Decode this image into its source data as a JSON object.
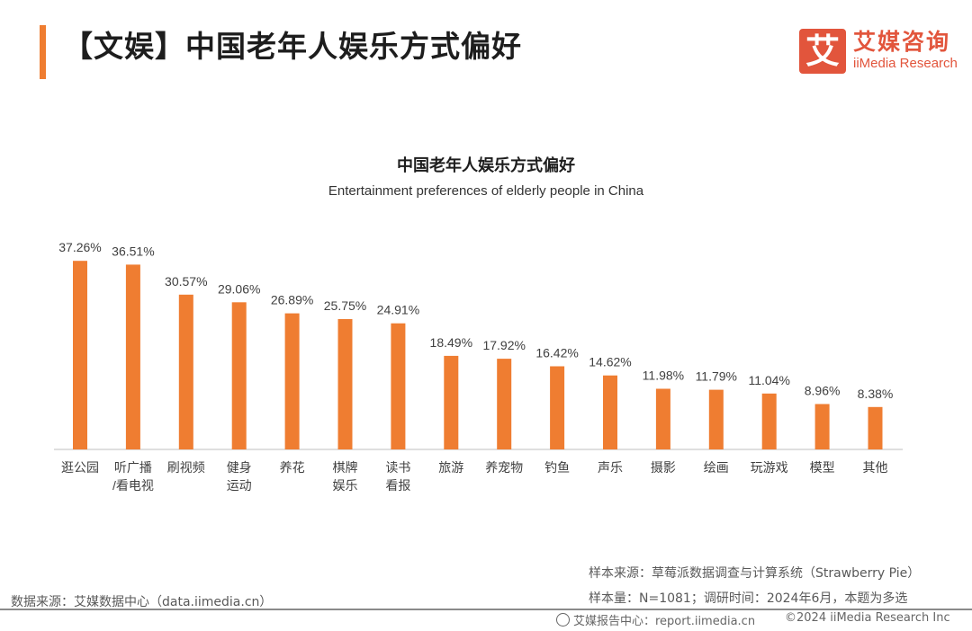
{
  "header": {
    "title": "【文娱】中国老年人娱乐方式偏好",
    "logo_char": "艾",
    "logo_cn": "艾媒咨询",
    "logo_en": "iiMedia Research"
  },
  "colors": {
    "accent": "#ef7d31",
    "bar": "#ef7d31",
    "logo": "#e2553c",
    "axis": "#bfbfbf"
  },
  "chart_data": {
    "type": "bar",
    "title": "中国老年人娱乐方式偏好",
    "subtitle": "Entertainment preferences of elderly people in China",
    "categories": [
      [
        "逛公园"
      ],
      [
        "听广播",
        "/看电视"
      ],
      [
        "刷视频"
      ],
      [
        "健身",
        "运动"
      ],
      [
        "养花"
      ],
      [
        "棋牌",
        "娱乐"
      ],
      [
        "读书",
        "看报"
      ],
      [
        "旅游"
      ],
      [
        "养宠物"
      ],
      [
        "钓鱼"
      ],
      [
        "声乐"
      ],
      [
        "摄影"
      ],
      [
        "绘画"
      ],
      [
        "玩游戏"
      ],
      [
        "模型"
      ],
      [
        "其他"
      ]
    ],
    "values": [
      37.26,
      36.51,
      30.57,
      29.06,
      26.89,
      25.75,
      24.91,
      18.49,
      17.92,
      16.42,
      14.62,
      11.98,
      11.79,
      11.04,
      8.96,
      8.38
    ],
    "labels": [
      "37.26%",
      "36.51%",
      "30.57%",
      "29.06%",
      "26.89%",
      "25.75%",
      "24.91%",
      "18.49%",
      "17.92%",
      "16.42%",
      "14.62%",
      "11.98%",
      "11.79%",
      "11.04%",
      "8.96%",
      "8.38%"
    ],
    "unit": "%",
    "xlabel": "",
    "ylabel": "",
    "ylim": [
      0,
      38
    ],
    "grid": false
  },
  "notes": {
    "source_left": "数据来源：艾媒数据中心（data.iimedia.cn）",
    "sample_source": "样本来源：草莓派数据调查与计算系统（Strawberry Pie）",
    "sample_size": "样本量：N=1081；调研时间：2024年6月，本题为多选"
  },
  "footer": {
    "left": "艾媒报告中心：report.iimedia.cn",
    "right": "©2024  iiMedia Research Inc"
  }
}
